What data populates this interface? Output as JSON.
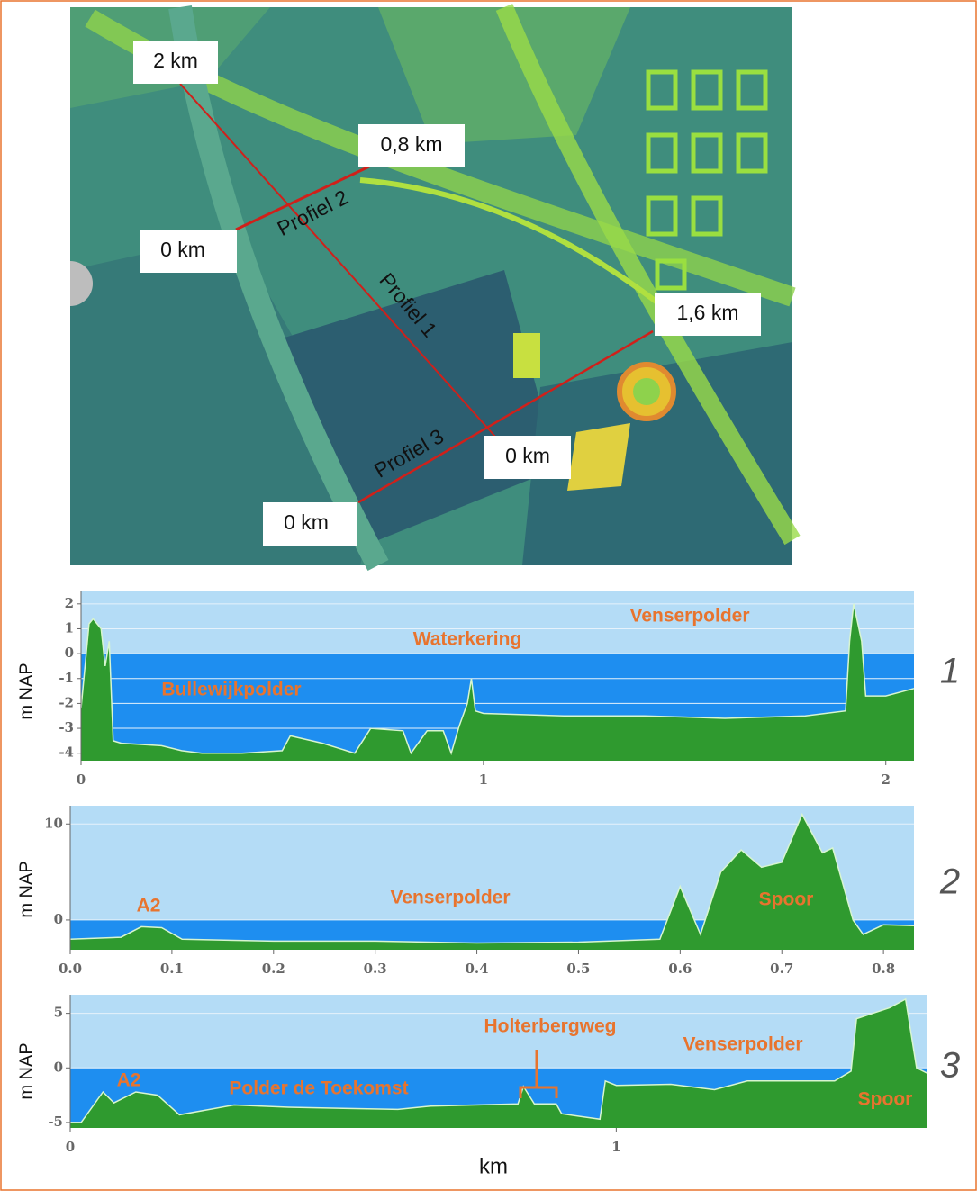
{
  "map": {
    "labels": [
      "2 km",
      "0,8 km",
      "0 km",
      "1,6 km",
      "0 km",
      "0 km"
    ],
    "profiles": [
      "Profiel 2",
      "Profiel 1",
      "Profiel 3"
    ]
  },
  "chart_data": [
    {
      "type": "area",
      "y_label": "m NAP",
      "panel_label": "1",
      "annotations": [
        "Bullewijkpolder",
        "Waterkering",
        "Venserpolder"
      ],
      "x": [
        0,
        0.02,
        0.03,
        0.05,
        0.06,
        0.07,
        0.08,
        0.1,
        0.2,
        0.25,
        0.3,
        0.4,
        0.5,
        0.52,
        0.6,
        0.68,
        0.72,
        0.8,
        0.82,
        0.86,
        0.9,
        0.92,
        0.94,
        0.96,
        0.97,
        0.98,
        1.0,
        1.2,
        1.4,
        1.6,
        1.8,
        1.9,
        1.91,
        1.92,
        1.94,
        1.95,
        2.0,
        2.07
      ],
      "values": [
        -2.2,
        1.2,
        1.4,
        1.0,
        -0.5,
        0.5,
        -3.5,
        -3.6,
        -3.7,
        -3.9,
        -4.0,
        -4.0,
        -3.9,
        -3.3,
        -3.6,
        -4.0,
        -3.0,
        -3.1,
        -4.0,
        -3.1,
        -3.1,
        -4.0,
        -2.9,
        -2.0,
        -1.0,
        -2.3,
        -2.4,
        -2.5,
        -2.5,
        -2.6,
        -2.5,
        -2.3,
        0.5,
        2.0,
        0.5,
        -1.7,
        -1.7,
        -1.4
      ],
      "xlim": [
        0,
        2.07
      ],
      "ylim": [
        -4.3,
        2.5
      ],
      "xticks": [
        0,
        1,
        2
      ],
      "yticks": [
        2,
        1,
        0,
        -1,
        -2,
        -3,
        -4
      ],
      "grid": true,
      "color": "#2f9a2f"
    },
    {
      "type": "area",
      "y_label": "m NAP",
      "panel_label": "2",
      "annotations": [
        "A2",
        "Venserpolder",
        "Spoor"
      ],
      "x": [
        0,
        0.05,
        0.07,
        0.09,
        0.11,
        0.2,
        0.3,
        0.4,
        0.5,
        0.58,
        0.6,
        0.62,
        0.64,
        0.66,
        0.68,
        0.7,
        0.72,
        0.74,
        0.75,
        0.77,
        0.78,
        0.8,
        0.83
      ],
      "values": [
        -2.0,
        -1.8,
        -0.7,
        -0.8,
        -2.0,
        -2.2,
        -2.2,
        -2.4,
        -2.3,
        -2.0,
        3.5,
        -1.5,
        5,
        7.3,
        5.5,
        6,
        11,
        7,
        7.5,
        0,
        -1.5,
        -0.5,
        -0.6
      ],
      "xlim": [
        0,
        0.83
      ],
      "ylim": [
        -3.1,
        11.9
      ],
      "xticks": [
        {
          "value": 0,
          "label": "0.0"
        },
        0.1,
        0.2,
        0.3,
        0.4,
        0.5,
        0.6,
        0.7,
        0.8
      ],
      "yticks": [
        10,
        0
      ],
      "grid": true,
      "color": "#2f9a2f"
    },
    {
      "type": "area",
      "y_label": "m NAP",
      "panel_label": "3",
      "x_label": "km",
      "annotations": [
        "A2",
        "Polder de Toekomst",
        "Holterbergweg",
        "Venserpolder",
        "Spoor"
      ],
      "x": [
        0,
        0.02,
        0.06,
        0.08,
        0.12,
        0.16,
        0.2,
        0.3,
        0.4,
        0.5,
        0.6,
        0.66,
        0.82,
        0.83,
        0.85,
        0.89,
        0.9,
        0.97,
        0.98,
        1.0,
        1.1,
        1.18,
        1.24,
        1.4,
        1.43,
        1.44,
        1.47,
        1.5,
        1.53,
        1.55,
        1.57
      ],
      "values": [
        -5,
        -5,
        -2.2,
        -3.2,
        -2.2,
        -2.5,
        -4.3,
        -3.4,
        -3.6,
        -3.7,
        -3.8,
        -3.5,
        -3.3,
        -1.7,
        -3.3,
        -3.3,
        -4.2,
        -4.7,
        -1.2,
        -1.6,
        -1.5,
        -2.0,
        -1.2,
        -1.2,
        -0.3,
        4.5,
        5,
        5.5,
        6.3,
        0,
        -0.5
      ],
      "xlim": [
        0,
        1.57
      ],
      "ylim": [
        -5.5,
        6.7
      ],
      "xticks": [
        0,
        1
      ],
      "yticks": [
        5,
        0,
        -5
      ],
      "grid": true,
      "color": "#2f9a2f"
    }
  ]
}
